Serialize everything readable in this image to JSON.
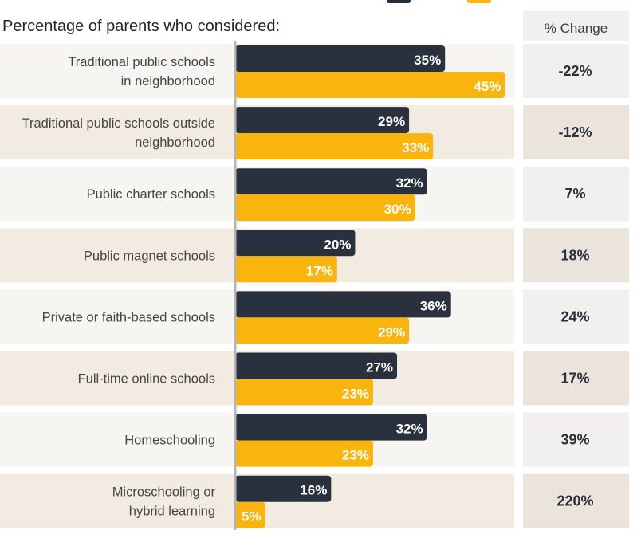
{
  "colors": {
    "series_dark": "#28313d",
    "series_gold": "#f9b50d",
    "row_light": "#f7f5f1",
    "row_tan": "#f2ebe2",
    "change_light": "#f1f0ef",
    "change_tan": "#ebe4dc",
    "axis": "#b5b5b5"
  },
  "chart_data": {
    "type": "bar",
    "orientation": "horizontal",
    "title": "Percentage of parents who considered:",
    "categories": [
      [
        "Traditional public schools",
        "in neighborhood"
      ],
      [
        "Traditional public schools outside",
        "neighborhood"
      ],
      [
        "Public charter schools"
      ],
      [
        "Public magnet schools"
      ],
      [
        "Private or faith-based schools"
      ],
      [
        "Full-time online schools"
      ],
      [
        "Homeschooling"
      ],
      [
        "Microschooling or",
        "hybrid learning"
      ]
    ],
    "series": [
      {
        "color": "#28313d",
        "values": [
          35,
          29,
          32,
          20,
          36,
          27,
          32,
          16
        ]
      },
      {
        "color": "#f9b50d",
        "values": [
          45,
          33,
          30,
          17,
          29,
          23,
          23,
          5
        ]
      }
    ],
    "value_labels": [
      [
        "35%",
        "29%",
        "32%",
        "20%",
        "36%",
        "27%",
        "32%",
        "16%"
      ],
      [
        "45%",
        "33%",
        "30%",
        "17%",
        "29%",
        "23%",
        "23%",
        "5%"
      ]
    ],
    "xlim": [
      0,
      45
    ],
    "legend_position": "top",
    "change_column": {
      "header": "% Change",
      "values": [
        "-22%",
        "-12%",
        "7%",
        "18%",
        "24%",
        "17%",
        "39%",
        "220%"
      ]
    }
  }
}
